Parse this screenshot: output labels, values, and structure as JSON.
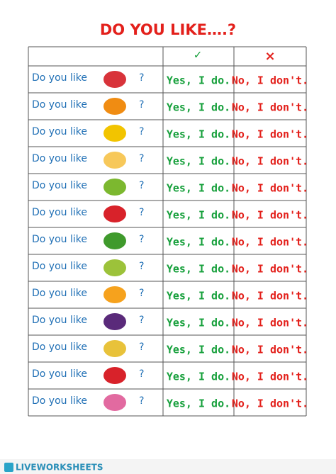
{
  "title": "DO YOU LIKE….?",
  "table": {
    "header": [
      "✓",
      "×"
    ],
    "rows": [
      [
        "Do you like",
        "?",
        "Yes, I do.",
        "No, I don't."
      ],
      [
        "Do you like",
        "?",
        "Yes, I do.",
        "No, I don't."
      ],
      [
        "Do you like",
        "?",
        "Yes, I do.",
        "No, I don't."
      ],
      [
        "Do you like",
        "?",
        "Yes, I do.",
        "No, I don't."
      ],
      [
        "Do you like",
        "?",
        "Yes, I do.",
        "No, I don't."
      ],
      [
        "Do you like",
        "?",
        "Yes, I do.",
        "No, I don't."
      ],
      [
        "Do you like",
        "?",
        "Yes, I do.",
        "No, I don't."
      ],
      [
        "Do you like",
        "?",
        "Yes, I do.",
        "No, I don't."
      ],
      [
        "Do you like",
        "?",
        "Yes, I do.",
        "No, I don't."
      ],
      [
        "Do you like",
        "?",
        "Yes, I do.",
        "No, I don't."
      ],
      [
        "Do you like",
        "?",
        "Yes, I do.",
        "No, I don't."
      ],
      [
        "Do you like",
        "?",
        "Yes, I do.",
        "No, I don't."
      ],
      [
        "Do you like",
        "?",
        "Yes, I do.",
        "No, I don't."
      ]
    ]
  },
  "footer": {
    "brand": "LIVEWORKSHEETS"
  }
}
